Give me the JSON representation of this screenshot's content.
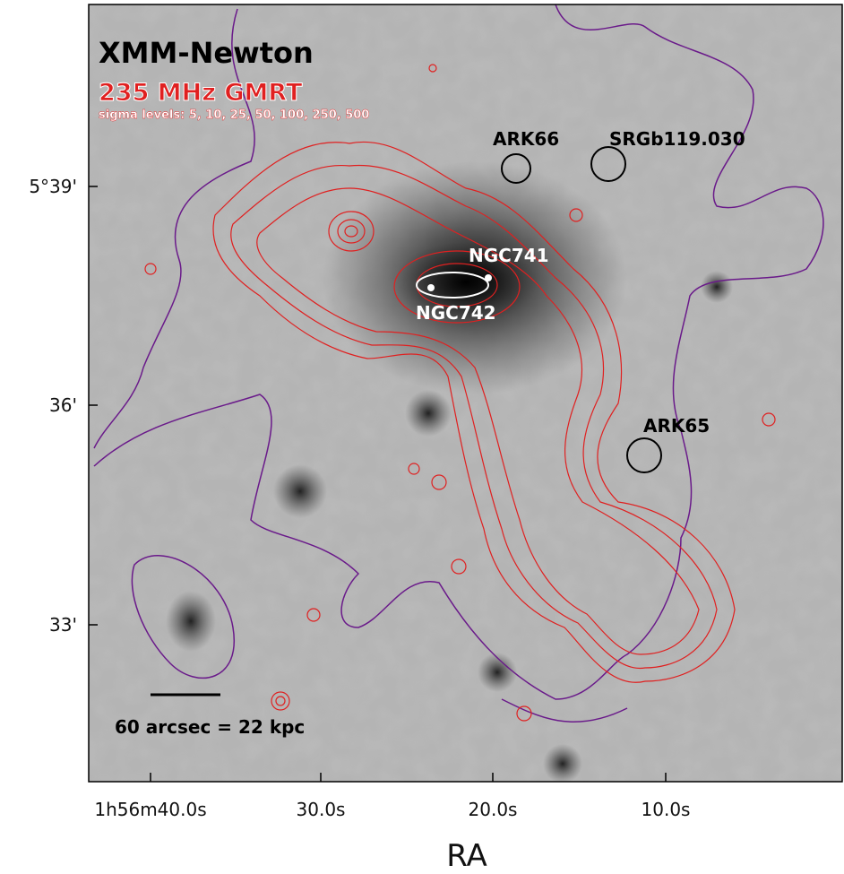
{
  "figure": {
    "labels": {
      "instrument": "XMM-Newton",
      "radio": "235 MHz GMRT",
      "sigma_levels": "sigma levels: 5, 10, 25, 50, 100, 250, 500"
    },
    "sources": [
      "ARK66",
      "SRGb119.030",
      "NGC741",
      "NGC742",
      "ARK65"
    ],
    "scale_bar": "60 arcsec = 22 kpc",
    "x_axis": {
      "label": "RA",
      "ticks": [
        "1h56m40.0s",
        "30.0s",
        "20.0s",
        "10.0s"
      ]
    },
    "y_axis": {
      "ticks": [
        "5°39'",
        "36'",
        "33'"
      ]
    }
  }
}
